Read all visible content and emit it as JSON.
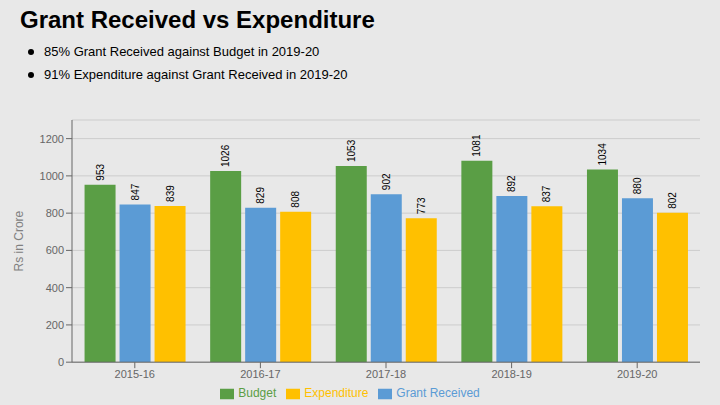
{
  "chart_data": {
    "type": "bar",
    "title": "Grant Received vs Expenditure",
    "annotations": [
      "85% Grant Received against Budget in 2019-20",
      "91% Expenditure against Grant Received in 2019-20"
    ],
    "categories": [
      "2015-16",
      "2016-17",
      "2017-18",
      "2018-19",
      "2019-20"
    ],
    "series": [
      {
        "name": "Budget",
        "color": "#5a9e45",
        "values": [
          953,
          1026,
          1053,
          1081,
          1034
        ]
      },
      {
        "name": "Grant Received",
        "color": "#5b9bd5",
        "values": [
          847,
          829,
          902,
          892,
          880
        ]
      },
      {
        "name": "Expenditure",
        "color": "#ffc000",
        "values": [
          839,
          808,
          773,
          837,
          802
        ]
      }
    ],
    "ylabel": "Rs in Crore",
    "ylim": [
      0,
      1300
    ],
    "yticks": [
      0,
      200,
      400,
      600,
      800,
      1000,
      1200
    ],
    "grid": true,
    "legend": "bottom",
    "data_labels": true
  }
}
